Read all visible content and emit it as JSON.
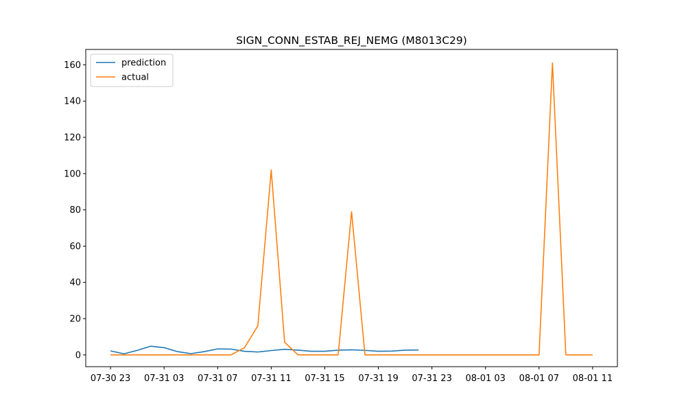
{
  "chart_data": {
    "type": "line",
    "title": "SIGN_CONN_ESTAB_REJ_NEMG (M8013C29)",
    "xlabel": "",
    "ylabel": "",
    "x_ticks": [
      "07-30 23",
      "07-31 03",
      "07-31 07",
      "07-31 11",
      "07-31 15",
      "07-31 19",
      "07-31 23",
      "08-01 03",
      "08-01 07",
      "08-01 11"
    ],
    "y_ticks": [
      "0",
      "20",
      "40",
      "60",
      "80",
      "100",
      "120",
      "140",
      "160"
    ],
    "ylim": [
      -6.5,
      168.5
    ],
    "xlim_hours": [
      -1.85,
      37.85
    ],
    "grid": false,
    "legend_position": "top-left",
    "series": [
      {
        "name": "prediction",
        "color": "#1f77b4",
        "x_hours": [
          0,
          1,
          2,
          3,
          4,
          5,
          6,
          7,
          8,
          9,
          10,
          11,
          12,
          13,
          14,
          15,
          16,
          17,
          18,
          19,
          20,
          21,
          22,
          23
        ],
        "values": [
          2.2,
          0.6,
          2.5,
          4.8,
          4.0,
          1.8,
          0.7,
          1.8,
          3.3,
          3.2,
          2.0,
          1.6,
          2.4,
          3.1,
          2.6,
          2.0,
          2.0,
          2.6,
          2.8,
          2.5,
          2.0,
          2.1,
          2.6,
          2.7
        ]
      },
      {
        "name": "actual",
        "color": "#ff7f0e",
        "x_hours": [
          0,
          1,
          2,
          3,
          4,
          5,
          6,
          7,
          8,
          9,
          10,
          11,
          12,
          13,
          14,
          15,
          16,
          17,
          18,
          19,
          20,
          21,
          22,
          23,
          24,
          25,
          26,
          27,
          28,
          29,
          30,
          31,
          32,
          33,
          34,
          35,
          36
        ],
        "values": [
          0,
          0,
          0,
          0,
          0,
          0,
          0,
          0,
          0,
          0,
          4,
          16,
          102,
          7,
          0,
          0,
          0,
          0,
          79,
          0,
          0,
          0,
          0,
          0,
          0,
          0,
          0,
          0,
          0,
          0,
          0,
          0,
          0,
          161,
          0,
          0,
          0
        ]
      }
    ]
  }
}
